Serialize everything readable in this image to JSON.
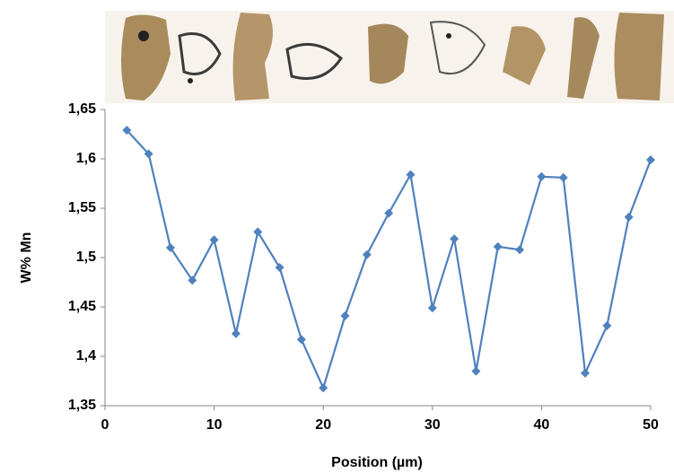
{
  "chart_data": {
    "type": "line",
    "x_label": "Position (µm)",
    "y_label": "W% Mn",
    "x": [
      2,
      4,
      6,
      8,
      10,
      12,
      14,
      16,
      18,
      20,
      22,
      24,
      26,
      28,
      30,
      32,
      34,
      36,
      38,
      40,
      42,
      44,
      46,
      48,
      50
    ],
    "series": [
      {
        "color": "#4f81bd",
        "values": [
          1.629,
          1.605,
          1.51,
          1.477,
          1.518,
          1.423,
          1.526,
          1.49,
          1.417,
          1.368,
          1.441,
          1.503,
          1.545,
          1.584,
          1.449,
          1.519,
          1.385,
          1.511,
          1.508,
          1.582,
          1.581,
          1.383,
          1.431,
          1.541,
          1.599
        ]
      }
    ],
    "xlim": [
      0,
      50
    ],
    "xticks": [
      0,
      10,
      20,
      30,
      40,
      50
    ],
    "ylim": [
      1.35,
      1.65
    ],
    "yticks": [
      {
        "value": 1.35,
        "label": "1,35"
      },
      {
        "value": 1.4,
        "label": "1,4"
      },
      {
        "value": 1.45,
        "label": "1,45"
      },
      {
        "value": 1.5,
        "label": "1,5"
      },
      {
        "value": 1.55,
        "label": "1,55"
      },
      {
        "value": 1.6,
        "label": "1,6"
      },
      {
        "value": 1.65,
        "label": "1,65"
      }
    ],
    "grid": false
  }
}
